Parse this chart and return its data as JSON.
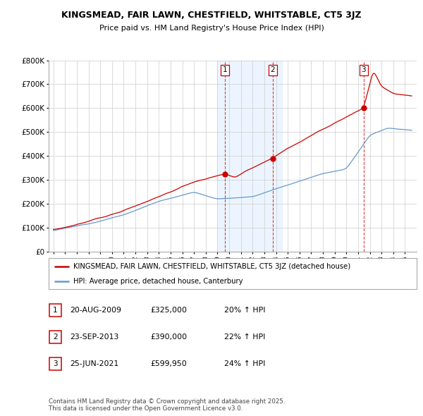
{
  "title": "KINGSMEAD, FAIR LAWN, CHESTFIELD, WHITSTABLE, CT5 3JZ",
  "subtitle": "Price paid vs. HM Land Registry's House Price Index (HPI)",
  "legend_label_red": "KINGSMEAD, FAIR LAWN, CHESTFIELD, WHITSTABLE, CT5 3JZ (detached house)",
  "legend_label_blue": "HPI: Average price, detached house, Canterbury",
  "footnote": "Contains HM Land Registry data © Crown copyright and database right 2025.\nThis data is licensed under the Open Government Licence v3.0.",
  "transactions": [
    {
      "num": 1,
      "date": "20-AUG-2009",
      "price": "£325,000",
      "change": "20% ↑ HPI",
      "year": 2009.64
    },
    {
      "num": 2,
      "date": "23-SEP-2013",
      "price": "£390,000",
      "change": "22% ↑ HPI",
      "year": 2013.73
    },
    {
      "num": 3,
      "date": "25-JUN-2021",
      "price": "£599,950",
      "change": "24% ↑ HPI",
      "year": 2021.48
    }
  ],
  "transaction_prices": [
    325000,
    390000,
    599950
  ],
  "ylim": [
    0,
    800000
  ],
  "yticks": [
    0,
    100000,
    200000,
    300000,
    400000,
    500000,
    600000,
    700000,
    800000
  ],
  "ytick_labels": [
    "£0",
    "£100K",
    "£200K",
    "£300K",
    "£400K",
    "£500K",
    "£600K",
    "£700K",
    "£800K"
  ],
  "color_red": "#cc0000",
  "color_blue": "#6699cc",
  "color_shading": "#ddeeff",
  "shading_start": 2009.0,
  "shading_end": 2014.5,
  "xlim_left": 1994.6,
  "xlim_right": 2026.0
}
